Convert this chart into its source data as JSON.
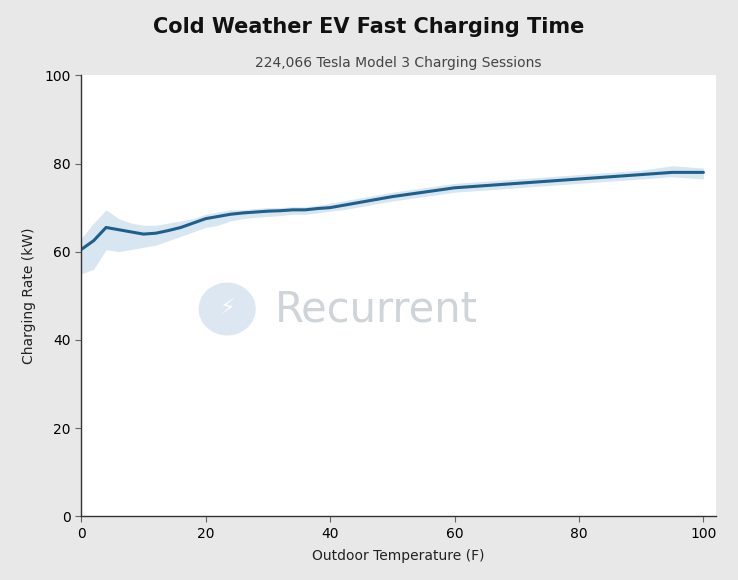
{
  "title": "Cold Weather EV Fast Charging Time",
  "subtitle": "224,066 Tesla Model 3 Charging Sessions",
  "xlabel": "Outdoor Temperature (F)",
  "ylabel": "Charging Rate (kW)",
  "xlim": [
    0,
    102
  ],
  "ylim": [
    0,
    100
  ],
  "xticks": [
    0,
    20,
    40,
    60,
    80,
    100
  ],
  "yticks": [
    0,
    20,
    40,
    60,
    80,
    100
  ],
  "line_color": "#1f5f8b",
  "fill_color": "#a8c8e0",
  "fill_alpha": 0.45,
  "background_color": "#ffffff",
  "outer_bg": "#e8e8e8",
  "x": [
    0,
    2,
    4,
    6,
    8,
    10,
    12,
    14,
    16,
    18,
    20,
    22,
    24,
    26,
    28,
    30,
    32,
    34,
    36,
    38,
    40,
    42,
    44,
    46,
    48,
    50,
    55,
    60,
    65,
    70,
    75,
    80,
    85,
    90,
    95,
    100
  ],
  "y_mean": [
    60.5,
    62.5,
    65.5,
    65.0,
    64.5,
    64.0,
    64.2,
    64.8,
    65.5,
    66.5,
    67.5,
    68.0,
    68.5,
    68.8,
    69.0,
    69.2,
    69.3,
    69.5,
    69.5,
    69.8,
    70.0,
    70.5,
    71.0,
    71.5,
    72.0,
    72.5,
    73.5,
    74.5,
    75.0,
    75.5,
    76.0,
    76.5,
    77.0,
    77.5,
    78.0,
    78.0
  ],
  "y_upper": [
    63.0,
    66.5,
    69.5,
    67.5,
    66.5,
    66.0,
    66.0,
    66.5,
    67.0,
    67.5,
    68.5,
    69.0,
    69.5,
    69.5,
    69.8,
    70.0,
    70.0,
    70.2,
    70.2,
    70.5,
    71.0,
    71.5,
    72.0,
    72.5,
    73.0,
    73.5,
    74.5,
    75.5,
    76.0,
    76.5,
    77.0,
    77.5,
    78.0,
    78.5,
    79.5,
    79.0
  ],
  "y_lower": [
    55.0,
    56.0,
    60.5,
    60.0,
    60.5,
    61.0,
    61.5,
    62.5,
    63.5,
    64.5,
    65.5,
    66.0,
    67.0,
    67.5,
    67.8,
    68.0,
    68.2,
    68.5,
    68.5,
    68.8,
    69.2,
    69.5,
    70.0,
    70.5,
    71.0,
    71.5,
    72.5,
    73.5,
    74.0,
    74.5,
    75.0,
    75.5,
    76.0,
    76.5,
    77.0,
    76.5
  ],
  "watermark_text": "Recurrent",
  "watermark_color": "#b0b8c0",
  "watermark_alpha": 0.6,
  "title_fontsize": 15,
  "subtitle_fontsize": 10,
  "label_fontsize": 10,
  "tick_fontsize": 10,
  "wm_circle_color": "#c5d8ea",
  "wm_circle_alpha": 0.6
}
